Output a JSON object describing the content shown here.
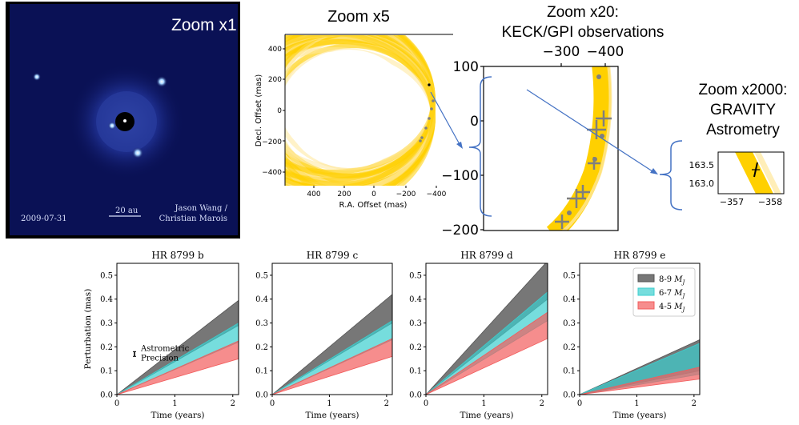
{
  "colors": {
    "orbit": "#FFD000",
    "orbit_light": "#FFE79A",
    "marker": "#7f7f7f",
    "arrow": "#4472C4",
    "band_mj89": "#555555",
    "band_mj67": "#3CCFCF",
    "band_mj45": "#F25C5C",
    "sky_bg": "#0a1155"
  },
  "sky_image": {
    "zoom_label": "Zoom x1",
    "date": "2009-07-31",
    "scale": "20 au",
    "credit_line1": "Jason Wang /",
    "credit_line2": "Christian Marois"
  },
  "zoom5": {
    "title": "Zoom x5",
    "xlabel": "R.A. Offset (mas)",
    "ylabel": "Decl. Offset (mas)",
    "xticks": [
      "400",
      "200",
      "0",
      "−200",
      "−400"
    ],
    "yticks": [
      "400",
      "200",
      "0",
      "−200",
      "−400"
    ]
  },
  "zoom20": {
    "title_line1": "Zoom x20:",
    "title_line2": "KECK/GPI observations",
    "xticks": [
      "−300",
      "−400"
    ],
    "yticks": [
      "100",
      "0",
      "−100",
      "−200"
    ]
  },
  "zoom2000": {
    "title_line1": "Zoom x2000:",
    "title_line2": "GRAVITY",
    "title_line3": "Astrometry",
    "xticks": [
      "−357",
      "−358"
    ],
    "yticks": [
      "163.5",
      "163.0"
    ]
  },
  "chart_data": [
    {
      "type": "area",
      "title": "HR 8799 b",
      "xlabel": "Time (years)",
      "ylabel": "Perturbation (mas)",
      "xlim": [
        0,
        2.1
      ],
      "ylim": [
        0,
        0.55
      ],
      "xticks": [
        "0",
        "1",
        "2"
      ],
      "yticks": [
        "0.0",
        "0.1",
        "0.2",
        "0.3",
        "0.4",
        "0.5"
      ],
      "annotation_line1": "Astrometric",
      "annotation_line2": "Precision",
      "error_bar": {
        "x": 0.3,
        "y": 0.17,
        "err": 0.01
      },
      "x": [
        0,
        2.1
      ],
      "series": [
        {
          "name": "8-9 M_J",
          "low": [
            0,
            0.29
          ],
          "high": [
            0,
            0.395
          ]
        },
        {
          "name": "6-7 M_J",
          "low": [
            0,
            0.22
          ],
          "high": [
            0,
            0.3
          ]
        },
        {
          "name": "4-5 M_J",
          "low": [
            0,
            0.15
          ],
          "high": [
            0,
            0.225
          ]
        }
      ]
    },
    {
      "type": "area",
      "title": "HR 8799 c",
      "xlabel": "Time (years)",
      "ylabel": "",
      "xlim": [
        0,
        2.1
      ],
      "ylim": [
        0,
        0.55
      ],
      "xticks": [
        "0",
        "1",
        "2"
      ],
      "yticks": [
        "0.0",
        "0.1",
        "0.2",
        "0.3",
        "0.4",
        "0.5"
      ],
      "x": [
        0,
        2.1
      ],
      "series": [
        {
          "name": "8-9 M_J",
          "low": [
            0,
            0.3
          ],
          "high": [
            0,
            0.42
          ]
        },
        {
          "name": "6-7 M_J",
          "low": [
            0,
            0.23
          ],
          "high": [
            0,
            0.31
          ]
        },
        {
          "name": "4-5 M_J",
          "low": [
            0,
            0.16
          ],
          "high": [
            0,
            0.235
          ]
        }
      ]
    },
    {
      "type": "area",
      "title": "HR 8799 d",
      "xlabel": "Time (years)",
      "ylabel": "",
      "xlim": [
        0,
        2.1
      ],
      "ylim": [
        0,
        0.55
      ],
      "xticks": [
        "0",
        "1",
        "2"
      ],
      "yticks": [
        "0.0",
        "0.1",
        "0.2",
        "0.3",
        "0.4",
        "0.5"
      ],
      "x": [
        0,
        2.1
      ],
      "series": [
        {
          "name": "8-9 M_J",
          "low": [
            0,
            0.4
          ],
          "high": [
            0,
            0.56
          ]
        },
        {
          "name": "6-7 M_J",
          "low": [
            0,
            0.31
          ],
          "high": [
            0,
            0.43
          ]
        },
        {
          "name": "4-5 M_J",
          "low": [
            0,
            0.235
          ],
          "high": [
            0,
            0.345
          ]
        }
      ]
    },
    {
      "type": "area",
      "title": "HR 8799 e",
      "xlabel": "Time (years)",
      "ylabel": "",
      "xlim": [
        0,
        2.1
      ],
      "ylim": [
        0,
        0.55
      ],
      "xticks": [
        "0",
        "1",
        "2"
      ],
      "yticks": [
        "0.0",
        "0.1",
        "0.2",
        "0.3",
        "0.4",
        "0.5"
      ],
      "legend_position": "top-right",
      "legend": [
        "8-9",
        "6-7",
        "4-5"
      ],
      "legend_unit": "M",
      "legend_sub": "J",
      "x": [
        0,
        2.1
      ],
      "series": [
        {
          "name": "8-9 M_J",
          "low": [
            0,
            0.1
          ],
          "high": [
            0,
            0.23
          ]
        },
        {
          "name": "6-7 M_J",
          "low": [
            0,
            0.085
          ],
          "high": [
            0,
            0.215
          ]
        },
        {
          "name": "4-5 M_J",
          "low": [
            0,
            0.065
          ],
          "high": [
            0,
            0.115
          ]
        }
      ]
    }
  ]
}
